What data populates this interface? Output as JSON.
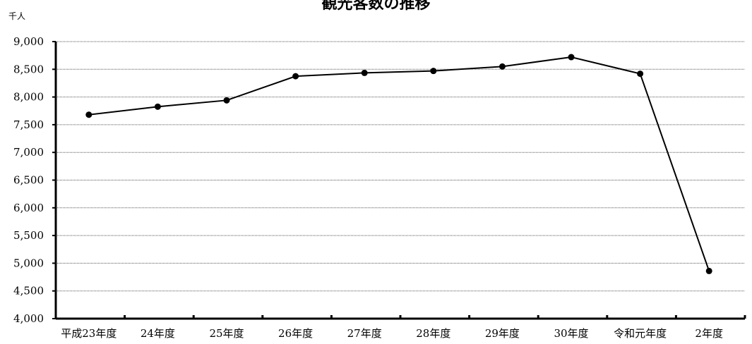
{
  "chart_data": {
    "type": "line",
    "title": "観光客数の推移",
    "unit_label": "千人",
    "categories": [
      "平成23年度",
      "24年度",
      "25年度",
      "26年度",
      "27年度",
      "28年度",
      "29年度",
      "30年度",
      "令和元年度",
      "2年度"
    ],
    "series": [
      {
        "values": [
          7680,
          7825,
          7940,
          8375,
          8435,
          8470,
          8550,
          8720,
          8420,
          4860
        ]
      }
    ],
    "ylim": [
      4000,
      9000
    ],
    "yticks": [
      9000,
      8500,
      8000,
      7500,
      7000,
      6500,
      6000,
      5500,
      5000,
      4500,
      4000
    ],
    "ytick_labels": [
      "9,000",
      "8,500",
      "8,000",
      "7,500",
      "7,000",
      "6,500",
      "6,000",
      "5,500",
      "5,000",
      "4,500",
      "4,000"
    ],
    "grid": true,
    "line_color": "#000000",
    "grid_color": "#555555"
  }
}
